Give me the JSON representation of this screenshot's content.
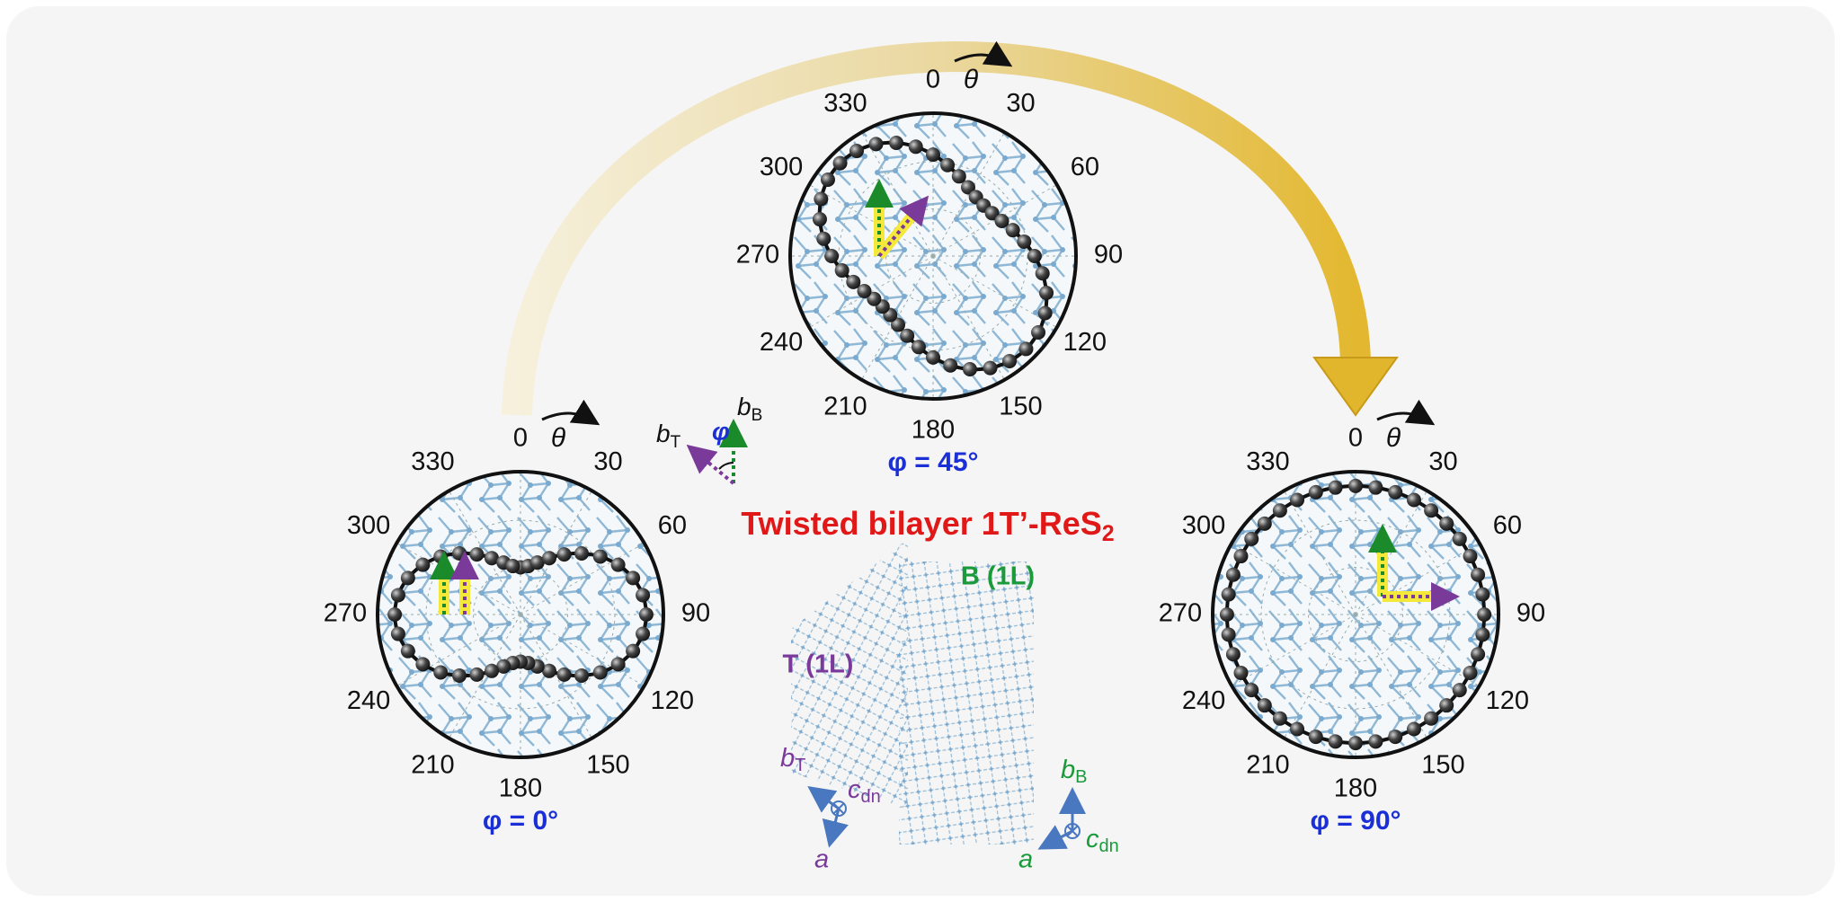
{
  "title": {
    "text": "Twisted bilayer 1T’-ReS",
    "subscript": "2"
  },
  "panels": [
    {
      "phi_label": "φ = 0°",
      "theta_label": "θ",
      "angle_labels": [
        "0",
        "30",
        "60",
        "90",
        "120",
        "150",
        "180",
        "210",
        "240",
        "270",
        "300",
        "330"
      ]
    },
    {
      "phi_label": "φ = 45°",
      "theta_label": "θ",
      "angle_labels": [
        "0",
        "30",
        "60",
        "90",
        "120",
        "150",
        "180",
        "210",
        "240",
        "270",
        "300",
        "330"
      ]
    },
    {
      "phi_label": "φ = 90°",
      "theta_label": "θ",
      "angle_labels": [
        "0",
        "30",
        "60",
        "90",
        "120",
        "150",
        "180",
        "210",
        "240",
        "270",
        "300",
        "330"
      ]
    }
  ],
  "twist_legend": {
    "b": "b",
    "b_top_sub": "T",
    "b_bottom_sub": "B",
    "phi": "φ"
  },
  "layers": {
    "bottom": "B (1L)",
    "top": "T (1L)"
  },
  "axes_top": {
    "b": "b",
    "b_sub": "T",
    "c": "c",
    "c_sub": "dn",
    "a": "a"
  },
  "axes_bottom": {
    "b": "b",
    "b_sub": "B",
    "c": "c",
    "c_sub": "dn",
    "a": "a"
  }
}
